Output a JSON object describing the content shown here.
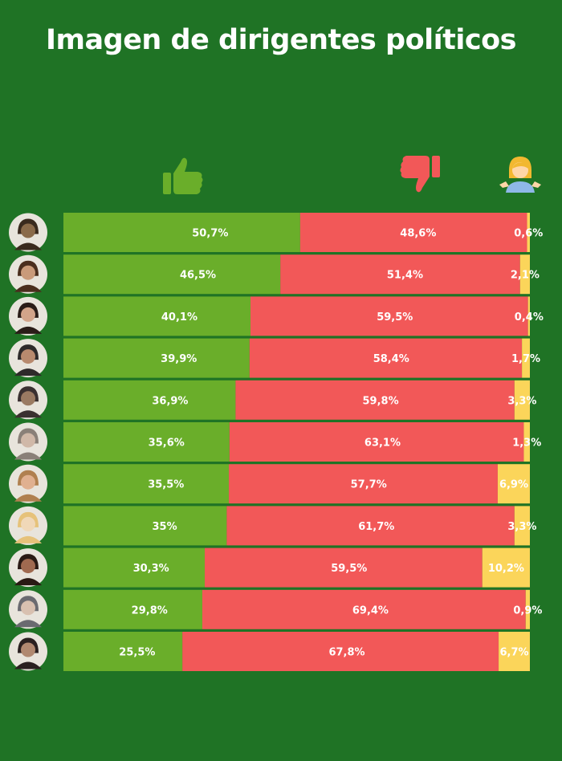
{
  "title": "Imagen de dirigentes políticos",
  "colors": {
    "background": "#1f7325",
    "positive": "#6aae2a",
    "negative": "#f25858",
    "neutral": "#fbd55a",
    "text": "#ffffff"
  },
  "icons": {
    "positive": "thumbs-up-icon",
    "negative": "thumbs-down-icon",
    "neutral": "person-shrugging-icon"
  },
  "chart_data": {
    "type": "bar",
    "stacked": true,
    "orientation": "horizontal",
    "unit": "%",
    "rows": [
      {
        "positive": 50.7,
        "negative": 48.6,
        "neutral": 0.6,
        "labels": [
          "50,7%",
          "48,6%",
          "0,6%"
        ]
      },
      {
        "positive": 46.5,
        "negative": 51.4,
        "neutral": 2.1,
        "labels": [
          "46,5%",
          "51,4%",
          "2,1%"
        ]
      },
      {
        "positive": 40.1,
        "negative": 59.5,
        "neutral": 0.4,
        "labels": [
          "40,1%",
          "59,5%",
          "0,4%"
        ]
      },
      {
        "positive": 39.9,
        "negative": 58.4,
        "neutral": 1.7,
        "labels": [
          "39,9%",
          "58,4%",
          "1,7%"
        ]
      },
      {
        "positive": 36.9,
        "negative": 59.8,
        "neutral": 3.3,
        "labels": [
          "36,9%",
          "59,8%",
          "3,3%"
        ]
      },
      {
        "positive": 35.6,
        "negative": 63.1,
        "neutral": 1.3,
        "labels": [
          "35,6%",
          "63,1%",
          "1,3%"
        ]
      },
      {
        "positive": 35.5,
        "negative": 57.7,
        "neutral": 6.9,
        "labels": [
          "35,5%",
          "57,7%",
          "6,9%"
        ]
      },
      {
        "positive": 35,
        "negative": 61.7,
        "neutral": 3.3,
        "labels": [
          "35%",
          "61,7%",
          "3,3%"
        ]
      },
      {
        "positive": 30.3,
        "negative": 59.5,
        "neutral": 10.2,
        "labels": [
          "30,3%",
          "59,5%",
          "10,2%"
        ]
      },
      {
        "positive": 29.8,
        "negative": 69.4,
        "neutral": 0.9,
        "labels": [
          "29,8%",
          "69,4%",
          "0,9%"
        ]
      },
      {
        "positive": 25.5,
        "negative": 67.8,
        "neutral": 6.7,
        "labels": [
          "25,5%",
          "67,8%",
          "6,7%"
        ]
      }
    ],
    "avatar_colors": [
      [
        "#8a6a4a",
        "#3a2a1e"
      ],
      [
        "#c99a7a",
        "#4a2e1e"
      ],
      [
        "#d2a48a",
        "#2a1c18"
      ],
      [
        "#b88a6e",
        "#2e2a2a"
      ],
      [
        "#9a7a62",
        "#3a3030"
      ],
      [
        "#d0b8a8",
        "#8a8078"
      ],
      [
        "#e0b090",
        "#b08050"
      ],
      [
        "#f0d8b8",
        "#e6c27a"
      ],
      [
        "#a06a50",
        "#2a1a14"
      ],
      [
        "#d8c0b0",
        "#6a6a70"
      ],
      [
        "#b08870",
        "#2a2020"
      ]
    ]
  }
}
